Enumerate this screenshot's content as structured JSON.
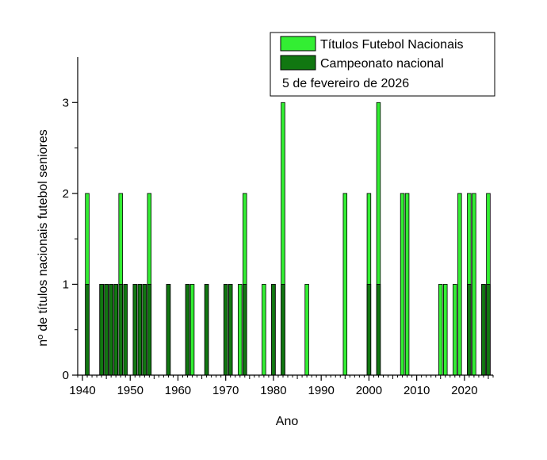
{
  "chart_data": {
    "type": "bar",
    "xlabel": "Ano",
    "ylabel": "nº de títulos nacionais futebol seniores",
    "xlim": [
      1939,
      2026
    ],
    "ylim": [
      0,
      3.5
    ],
    "x_ticks": [
      1940,
      1950,
      1960,
      1970,
      1980,
      1990,
      2000,
      2010,
      2020
    ],
    "y_ticks": [
      0,
      1,
      2,
      3
    ],
    "grid": false,
    "legend_position": "top-right",
    "legend_note": "5 de fevereiro de 2026",
    "series": [
      {
        "name": "Títulos Futebol Nacionais",
        "color": "#33ee33",
        "points": [
          [
            1941,
            2
          ],
          [
            1944,
            1
          ],
          [
            1945,
            1
          ],
          [
            1946,
            1
          ],
          [
            1947,
            1
          ],
          [
            1948,
            2
          ],
          [
            1949,
            1
          ],
          [
            1951,
            1
          ],
          [
            1952,
            1
          ],
          [
            1953,
            1
          ],
          [
            1954,
            2
          ],
          [
            1958,
            1
          ],
          [
            1962,
            1
          ],
          [
            1963,
            1
          ],
          [
            1966,
            1
          ],
          [
            1970,
            1
          ],
          [
            1971,
            1
          ],
          [
            1973,
            1
          ],
          [
            1974,
            2
          ],
          [
            1978,
            1
          ],
          [
            1980,
            1
          ],
          [
            1982,
            3
          ],
          [
            1987,
            1
          ],
          [
            1995,
            2
          ],
          [
            2000,
            2
          ],
          [
            2002,
            3
          ],
          [
            2007,
            2
          ],
          [
            2008,
            2
          ],
          [
            2015,
            1
          ],
          [
            2016,
            1
          ],
          [
            2018,
            1
          ],
          [
            2019,
            2
          ],
          [
            2021,
            2
          ],
          [
            2022,
            2
          ],
          [
            2024,
            1
          ],
          [
            2025,
            2
          ]
        ]
      },
      {
        "name": "Campeonato nacional",
        "color": "#117711",
        "points": [
          [
            1941,
            1
          ],
          [
            1944,
            1
          ],
          [
            1945,
            1
          ],
          [
            1946,
            1
          ],
          [
            1947,
            1
          ],
          [
            1948,
            1
          ],
          [
            1949,
            1
          ],
          [
            1951,
            1
          ],
          [
            1952,
            1
          ],
          [
            1953,
            1
          ],
          [
            1954,
            1
          ],
          [
            1958,
            1
          ],
          [
            1962,
            1
          ],
          [
            1966,
            1
          ],
          [
            1970,
            1
          ],
          [
            1971,
            1
          ],
          [
            1974,
            1
          ],
          [
            1980,
            1
          ],
          [
            1982,
            1
          ],
          [
            2000,
            1
          ],
          [
            2002,
            1
          ],
          [
            2021,
            1
          ],
          [
            2024,
            1
          ],
          [
            2025,
            1
          ]
        ]
      }
    ]
  }
}
